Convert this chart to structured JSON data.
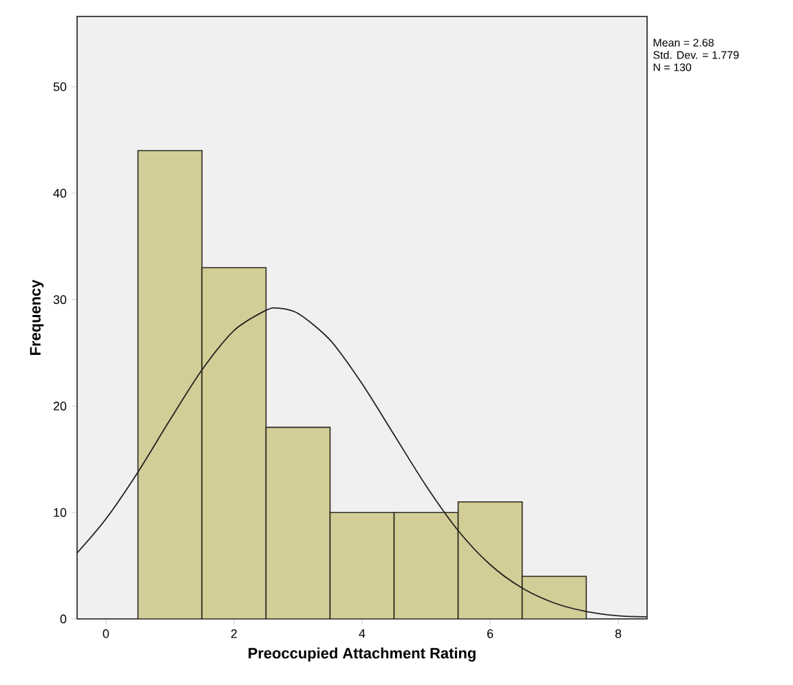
{
  "chart_data": {
    "type": "histogram",
    "xlabel": "Preoccupied Attachment Rating",
    "ylabel": "Frequency",
    "bins": [
      0.5,
      1.5,
      2.5,
      3.5,
      4.5,
      5.5,
      6.5,
      7.5
    ],
    "series": [
      {
        "color": "#d3ce97",
        "values": [
          44,
          33,
          18,
          10,
          10,
          11,
          4
        ]
      },
      {
        "type": "line",
        "color": "#222222",
        "x": [
          -0.45,
          0,
          0.5,
          1,
          1.5,
          2,
          2.5,
          2.68,
          3,
          3.5,
          4,
          4.5,
          5,
          5.5,
          6,
          6.5,
          7,
          7.5,
          8,
          8.45
        ],
        "values": [
          6.2,
          9.4,
          13.8,
          18.7,
          23.4,
          27.1,
          29.0,
          29.2,
          28.7,
          26.2,
          22.1,
          17.3,
          12.5,
          8.3,
          5.1,
          2.9,
          1.5,
          0.7,
          0.3,
          0.2
        ]
      }
    ],
    "xlim": [
      -0.45,
      8.45
    ],
    "ylim": [
      0,
      56.6
    ],
    "xticks": [
      0,
      2,
      4,
      6,
      8
    ],
    "yticks": [
      0,
      10,
      20,
      30,
      40,
      50
    ],
    "annotations": [
      "Mean = 2.68",
      "Std. Dev. = 1.779",
      "N = 130"
    ],
    "grid": false
  }
}
